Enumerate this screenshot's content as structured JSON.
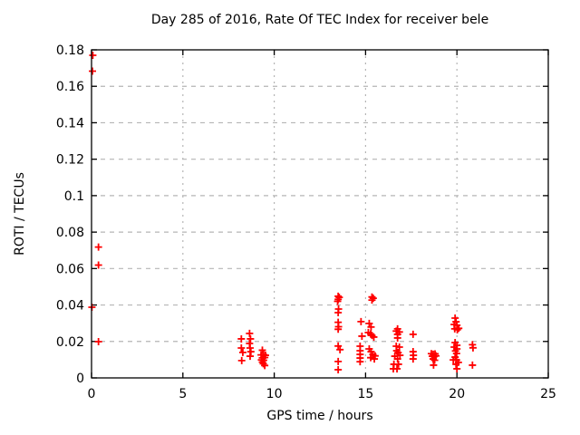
{
  "chart_data": {
    "type": "scatter",
    "title": "Day 285 of 2016, Rate Of TEC Index for receiver bele",
    "xlabel": "GPS time / hours",
    "ylabel": "ROTI / TECUs",
    "xlim": [
      0,
      25
    ],
    "ylim": [
      0,
      0.18
    ],
    "xticks": [
      0,
      5,
      10,
      15,
      20,
      25
    ],
    "xtick_labels": [
      "0",
      "5",
      "10",
      "15",
      "20",
      "25"
    ],
    "yticks": [
      0,
      0.02,
      0.04,
      0.06,
      0.08,
      0.1,
      0.12,
      0.14,
      0.16,
      0.18
    ],
    "ytick_labels": [
      "0",
      "0.02",
      "0.04",
      "0.06",
      "0.08",
      "0.1",
      "0.12",
      "0.14",
      "0.16",
      "0.18"
    ],
    "grid": true,
    "legend": "none",
    "marker": "plus",
    "marker_color": "#ff0000",
    "grid_color": "#b5b5b5",
    "border_color": "#000000",
    "points": [
      [
        0.07,
        0.177
      ],
      [
        0.05,
        0.1683
      ],
      [
        0.38,
        0.0718
      ],
      [
        0.38,
        0.0619
      ],
      [
        0.02,
        0.0388
      ],
      [
        0.38,
        0.0199
      ],
      [
        8.2,
        0.0214
      ],
      [
        8.2,
        0.0164
      ],
      [
        8.28,
        0.014
      ],
      [
        8.22,
        0.0095
      ],
      [
        8.65,
        0.0244
      ],
      [
        8.7,
        0.0214
      ],
      [
        8.65,
        0.0189
      ],
      [
        8.68,
        0.0164
      ],
      [
        8.72,
        0.0144
      ],
      [
        8.68,
        0.0119
      ],
      [
        9.35,
        0.0152
      ],
      [
        9.28,
        0.0126
      ],
      [
        9.42,
        0.0128
      ],
      [
        9.52,
        0.0124
      ],
      [
        9.35,
        0.011
      ],
      [
        9.48,
        0.0112
      ],
      [
        9.3,
        0.0099
      ],
      [
        9.42,
        0.0097
      ],
      [
        9.35,
        0.0087
      ],
      [
        9.4,
        0.0078
      ],
      [
        9.48,
        0.0068
      ],
      [
        13.5,
        0.0448
      ],
      [
        13.56,
        0.0442
      ],
      [
        13.5,
        0.0431
      ],
      [
        13.47,
        0.042
      ],
      [
        13.52,
        0.0378
      ],
      [
        13.5,
        0.0358
      ],
      [
        13.5,
        0.0305
      ],
      [
        13.52,
        0.0281
      ],
      [
        13.5,
        0.0267
      ],
      [
        13.5,
        0.0175
      ],
      [
        13.6,
        0.0155
      ],
      [
        13.5,
        0.009
      ],
      [
        13.5,
        0.0045
      ],
      [
        14.75,
        0.0309
      ],
      [
        14.8,
        0.0229
      ],
      [
        14.7,
        0.0174
      ],
      [
        14.7,
        0.0149
      ],
      [
        14.7,
        0.0129
      ],
      [
        14.7,
        0.0109
      ],
      [
        14.7,
        0.0089
      ],
      [
        15.35,
        0.0444
      ],
      [
        15.42,
        0.0437
      ],
      [
        15.35,
        0.0427
      ],
      [
        15.2,
        0.0299
      ],
      [
        15.3,
        0.0279
      ],
      [
        15.15,
        0.0249
      ],
      [
        15.28,
        0.0241
      ],
      [
        15.35,
        0.0233
      ],
      [
        15.45,
        0.0224
      ],
      [
        15.2,
        0.0159
      ],
      [
        15.3,
        0.0144
      ],
      [
        15.4,
        0.0129
      ],
      [
        15.28,
        0.0111
      ],
      [
        15.48,
        0.0104
      ],
      [
        15.52,
        0.0121
      ],
      [
        16.75,
        0.0269
      ],
      [
        16.68,
        0.0257
      ],
      [
        16.85,
        0.0252
      ],
      [
        16.75,
        0.0239
      ],
      [
        16.75,
        0.0219
      ],
      [
        16.68,
        0.0174
      ],
      [
        16.85,
        0.0169
      ],
      [
        16.7,
        0.0149
      ],
      [
        16.78,
        0.0139
      ],
      [
        16.88,
        0.0124
      ],
      [
        16.6,
        0.0119
      ],
      [
        16.75,
        0.0104
      ],
      [
        16.55,
        0.0075
      ],
      [
        16.8,
        0.0075
      ],
      [
        16.52,
        0.005
      ],
      [
        16.72,
        0.005
      ],
      [
        17.6,
        0.0239
      ],
      [
        17.6,
        0.0144
      ],
      [
        17.62,
        0.0124
      ],
      [
        17.6,
        0.0104
      ],
      [
        18.6,
        0.0133
      ],
      [
        18.7,
        0.013
      ],
      [
        18.8,
        0.0132
      ],
      [
        18.65,
        0.0119
      ],
      [
        18.75,
        0.0117
      ],
      [
        18.85,
        0.0121
      ],
      [
        18.7,
        0.0104
      ],
      [
        18.78,
        0.0097
      ],
      [
        18.72,
        0.007
      ],
      [
        19.9,
        0.0328
      ],
      [
        19.95,
        0.0308
      ],
      [
        19.85,
        0.0293
      ],
      [
        20.0,
        0.0289
      ],
      [
        19.88,
        0.0269
      ],
      [
        20.02,
        0.0264
      ],
      [
        20.1,
        0.0272
      ],
      [
        19.9,
        0.0194
      ],
      [
        20.0,
        0.0179
      ],
      [
        19.85,
        0.0169
      ],
      [
        20.0,
        0.0159
      ],
      [
        19.92,
        0.0148
      ],
      [
        19.98,
        0.0134
      ],
      [
        19.9,
        0.0114
      ],
      [
        19.8,
        0.0099
      ],
      [
        19.98,
        0.0098
      ],
      [
        20.08,
        0.0085
      ],
      [
        19.95,
        0.0075
      ],
      [
        20.0,
        0.005
      ],
      [
        20.85,
        0.0182
      ],
      [
        20.88,
        0.0165
      ],
      [
        20.85,
        0.007
      ]
    ]
  }
}
